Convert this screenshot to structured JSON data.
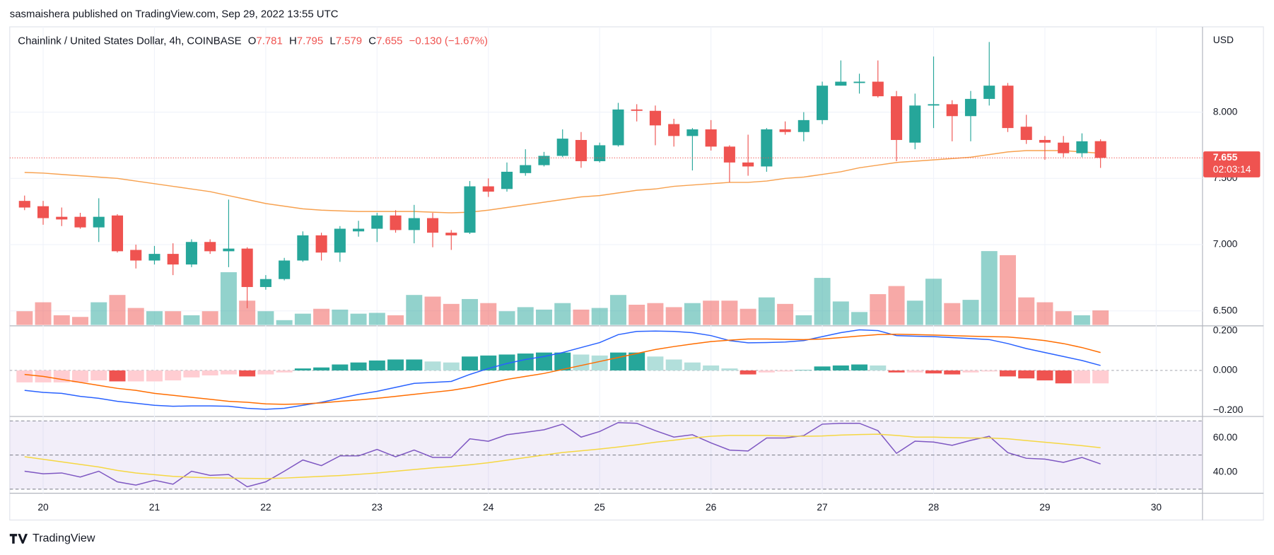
{
  "attribution": "sasmaishera published on TradingView.com, Sep 29, 2022 13:55 UTC",
  "brand": "TradingView",
  "chart_data": [
    {
      "type": "candlestick",
      "title": "Chainlink / United States Dollar, 4h, COINBASE",
      "legend": [
        {
          "key": "O",
          "value": 7.781
        },
        {
          "key": "H",
          "value": 7.795
        },
        {
          "key": "L",
          "value": 7.579
        },
        {
          "key": "C",
          "value": 7.655
        }
      ],
      "change": "−0.130 (−1.67%)",
      "currency": "USD",
      "last_price": 7.655,
      "countdown": "02:03:14",
      "up_color": "#26a69a",
      "down_color": "#ef5350",
      "xlim": [
        19.7,
        30.416
      ],
      "xticks": [
        20,
        21,
        22,
        23,
        24,
        25,
        26,
        27,
        28,
        29,
        30
      ],
      "ylim": [
        6.393,
        8.644
      ],
      "yticks": [
        {
          "value": 6.5,
          "label": "6.500"
        },
        {
          "value": 7,
          "label": "7.000"
        },
        {
          "value": 7.5,
          "label": "7.500"
        },
        {
          "value": 8,
          "label": "8.000"
        }
      ],
      "grid": true,
      "x": [
        19.8333,
        20,
        20.1667,
        20.3333,
        20.5,
        20.6667,
        20.8333,
        21,
        21.1667,
        21.3333,
        21.5,
        21.6667,
        21.8333,
        22,
        22.1667,
        22.3333,
        22.5,
        22.6667,
        22.8333,
        23,
        23.1667,
        23.3333,
        23.5,
        23.6667,
        23.8333,
        24,
        24.1667,
        24.3333,
        24.5,
        24.6667,
        24.8333,
        25,
        25.1667,
        25.3333,
        25.5,
        25.6667,
        25.8333,
        26,
        26.1667,
        26.3333,
        26.5,
        26.6667,
        26.8333,
        27,
        27.1667,
        27.3333,
        27.5,
        27.6667,
        27.8333,
        28,
        28.1667,
        28.3333,
        28.5,
        28.6667,
        28.8333,
        29,
        29.1667,
        29.3333,
        29.5
      ],
      "open": [
        7.33,
        7.29,
        7.21,
        7.21,
        7.13,
        7.22,
        6.96,
        6.88,
        6.93,
        6.85,
        7.02,
        6.95,
        6.97,
        6.68,
        6.74,
        6.88,
        7.07,
        6.94,
        7.1,
        7.12,
        7.22,
        7.11,
        7.2,
        7.09,
        7.09,
        7.44,
        7.42,
        7.54,
        7.6,
        7.67,
        7.79,
        7.63,
        7.75,
        8.02,
        8.01,
        7.91,
        7.82,
        7.87,
        7.74,
        7.62,
        7.59,
        7.87,
        7.85,
        7.94,
        8.2,
        8.22,
        8.23,
        8.12,
        7.77,
        8.05,
        8.06,
        7.97,
        8.1,
        8.2,
        7.89,
        7.79,
        7.77,
        7.69,
        7.781
      ],
      "high": [
        7.37,
        7.33,
        7.28,
        7.24,
        7.35,
        7.23,
        7.0,
        6.99,
        7.01,
        7.04,
        7.04,
        7.34,
        6.98,
        6.77,
        6.9,
        7.1,
        7.09,
        7.14,
        7.18,
        7.24,
        7.26,
        7.3,
        7.24,
        7.11,
        7.48,
        7.5,
        7.62,
        7.72,
        7.7,
        7.87,
        7.85,
        7.77,
        8.07,
        8.06,
        8.05,
        7.95,
        7.88,
        7.94,
        7.75,
        7.83,
        7.88,
        7.93,
        8.0,
        8.23,
        8.39,
        8.29,
        8.39,
        8.16,
        8.14,
        8.42,
        8.09,
        8.16,
        8.53,
        8.22,
        7.98,
        7.82,
        7.82,
        7.84,
        7.795
      ],
      "low": [
        7.26,
        7.15,
        7.14,
        7.12,
        7.02,
        6.94,
        6.82,
        6.85,
        6.77,
        6.83,
        6.93,
        6.83,
        6.52,
        6.66,
        6.73,
        6.87,
        6.88,
        6.87,
        7.06,
        7.02,
        7.09,
        7.01,
        6.98,
        6.96,
        7.08,
        7.36,
        7.4,
        7.52,
        7.59,
        7.66,
        7.58,
        7.62,
        7.74,
        7.93,
        7.75,
        7.74,
        7.56,
        7.71,
        7.47,
        7.52,
        7.55,
        7.83,
        7.78,
        7.91,
        8.2,
        8.14,
        8.11,
        7.63,
        7.72,
        7.88,
        7.78,
        7.78,
        8.05,
        7.85,
        7.76,
        7.64,
        7.66,
        7.66,
        7.579
      ],
      "close": [
        7.28,
        7.2,
        7.19,
        7.13,
        7.21,
        6.95,
        6.88,
        6.93,
        6.85,
        7.02,
        6.95,
        6.97,
        6.68,
        6.74,
        6.88,
        7.07,
        6.94,
        7.12,
        7.12,
        7.22,
        7.11,
        7.2,
        7.09,
        7.07,
        7.44,
        7.4,
        7.55,
        7.6,
        7.67,
        7.8,
        7.63,
        7.75,
        8.02,
        8.01,
        7.9,
        7.82,
        7.87,
        7.74,
        7.62,
        7.59,
        7.87,
        7.85,
        7.94,
        8.2,
        8.23,
        8.23,
        8.12,
        7.79,
        8.05,
        8.06,
        7.97,
        8.1,
        8.2,
        7.88,
        7.79,
        7.77,
        7.69,
        7.78,
        7.655
      ],
      "overlays": [
        {
          "color": "#f7a14f",
          "values": [
            7.545,
            7.54,
            7.53,
            7.52,
            7.51,
            7.5,
            7.48,
            7.46,
            7.44,
            7.42,
            7.4,
            7.37,
            7.34,
            7.31,
            7.29,
            7.27,
            7.26,
            7.255,
            7.25,
            7.25,
            7.25,
            7.25,
            7.245,
            7.24,
            7.245,
            7.26,
            7.28,
            7.3,
            7.32,
            7.34,
            7.36,
            7.37,
            7.39,
            7.41,
            7.42,
            7.44,
            7.45,
            7.46,
            7.47,
            7.47,
            7.48,
            7.5,
            7.51,
            7.53,
            7.55,
            7.58,
            7.6,
            7.62,
            7.63,
            7.64,
            7.65,
            7.66,
            7.68,
            7.7,
            7.71,
            7.71,
            7.71,
            7.7,
            7.69
          ]
        }
      ],
      "volume": [
        17,
        28,
        12,
        10,
        28,
        37,
        21,
        17,
        17,
        12,
        17,
        65,
        30,
        17,
        6,
        14,
        20,
        19,
        14,
        15,
        12,
        37,
        35,
        26,
        32,
        27,
        17,
        22,
        19,
        27,
        19,
        21,
        37,
        25,
        27,
        22,
        27,
        30,
        30,
        20,
        34,
        26,
        12,
        58,
        29,
        16,
        38,
        48,
        30,
        57,
        27,
        31,
        91,
        86,
        34,
        28,
        17,
        12,
        18
      ]
    },
    {
      "type": "macd",
      "ylim": [
        -0.229,
        0.22
      ],
      "yticks": [
        {
          "value": 0.2,
          "label": "0.200"
        },
        {
          "value": 0,
          "label": "0.000"
        },
        {
          "value": -0.2,
          "label": "−0.200"
        }
      ],
      "zero_line": true,
      "histogram": {
        "colors": {
          "grow_above": "#26a69a",
          "fall_above": "#b2dfdb",
          "grow_below": "#ffcdd2",
          "fall_below": "#ef5350"
        },
        "values": [
          -0.06,
          -0.06,
          -0.06,
          -0.06,
          -0.05,
          -0.055,
          -0.055,
          -0.055,
          -0.05,
          -0.035,
          -0.025,
          -0.02,
          -0.03,
          -0.02,
          -0.01,
          0.01,
          0.015,
          0.03,
          0.04,
          0.05,
          0.055,
          0.055,
          0.045,
          0.04,
          0.07,
          0.075,
          0.08,
          0.085,
          0.09,
          0.09,
          0.08,
          0.075,
          0.09,
          0.09,
          0.07,
          0.055,
          0.04,
          0.025,
          0.01,
          -0.02,
          -0.01,
          -0.005,
          0.002,
          0.02,
          0.025,
          0.03,
          0.025,
          -0.01,
          -0.01,
          -0.015,
          -0.02,
          -0.01,
          -0.005,
          -0.03,
          -0.04,
          -0.05,
          -0.065,
          -0.065,
          -0.065
        ]
      },
      "series": [
        {
          "color": "#2962ff",
          "values": [
            -0.1,
            -0.11,
            -0.115,
            -0.13,
            -0.14,
            -0.155,
            -0.165,
            -0.175,
            -0.18,
            -0.178,
            -0.178,
            -0.18,
            -0.19,
            -0.195,
            -0.19,
            -0.175,
            -0.16,
            -0.14,
            -0.12,
            -0.105,
            -0.085,
            -0.065,
            -0.06,
            -0.055,
            -0.02,
            0.01,
            0.035,
            0.055,
            0.07,
            0.09,
            0.115,
            0.14,
            0.18,
            0.196,
            0.198,
            0.196,
            0.19,
            0.175,
            0.15,
            0.139,
            0.14,
            0.143,
            0.15,
            0.17,
            0.19,
            0.204,
            0.2,
            0.175,
            0.172,
            0.17,
            0.165,
            0.16,
            0.155,
            0.135,
            0.11,
            0.09,
            0.07,
            0.05,
            0.025
          ]
        },
        {
          "color": "#ff6d00",
          "values": [
            -0.02,
            -0.03,
            -0.045,
            -0.06,
            -0.075,
            -0.09,
            -0.1,
            -0.115,
            -0.125,
            -0.135,
            -0.145,
            -0.155,
            -0.16,
            -0.168,
            -0.17,
            -0.168,
            -0.163,
            -0.155,
            -0.148,
            -0.14,
            -0.13,
            -0.12,
            -0.11,
            -0.1,
            -0.085,
            -0.065,
            -0.045,
            -0.03,
            -0.015,
            0.005,
            0.025,
            0.045,
            0.065,
            0.085,
            0.105,
            0.12,
            0.133,
            0.145,
            0.152,
            0.158,
            0.158,
            0.156,
            0.155,
            0.158,
            0.165,
            0.173,
            0.18,
            0.182,
            0.18,
            0.178,
            0.175,
            0.172,
            0.17,
            0.168,
            0.16,
            0.15,
            0.135,
            0.115,
            0.09
          ]
        }
      ]
    },
    {
      "type": "rsi",
      "ylim": [
        27.62,
        72.38
      ],
      "yticks": [
        {
          "value": 40,
          "label": "40.00"
        },
        {
          "value": 60,
          "label": "60.00"
        }
      ],
      "levels": [
        30,
        50,
        70
      ],
      "band_color": "#7e57c2",
      "series": [
        {
          "color": "#7e57c2",
          "values": [
            40.5,
            39,
            39.5,
            37.1,
            40.5,
            34.3,
            32.4,
            35.2,
            32.9,
            40.5,
            38.1,
            38.6,
            31.4,
            34.3,
            40.5,
            47.1,
            43.8,
            49.5,
            49.5,
            53.3,
            49,
            52.9,
            48.6,
            48.6,
            59.5,
            58.1,
            61.9,
            63.3,
            64.8,
            68.1,
            60.5,
            63.8,
            69,
            68.6,
            64.3,
            60.5,
            61.9,
            57.1,
            52.9,
            52.4,
            60,
            60,
            61.4,
            68.1,
            68.6,
            68.6,
            64.3,
            51,
            58.1,
            57.6,
            55.7,
            58.6,
            61,
            51.4,
            48.1,
            47.6,
            45.7,
            48.6,
            44.8
          ]
        },
        {
          "color": "#f5d742",
          "values": [
            49,
            47.5,
            46,
            44.5,
            43,
            41,
            39.5,
            38.5,
            37.5,
            37,
            36.7,
            36.5,
            36.3,
            36.2,
            36.5,
            37,
            37.5,
            38,
            38.7,
            39.5,
            40.5,
            41.5,
            42.5,
            43.3,
            44.3,
            45.5,
            47,
            48.5,
            50,
            51.5,
            52.5,
            53.5,
            54.7,
            56,
            57.5,
            58.7,
            60,
            61,
            61.5,
            61.5,
            61.5,
            61.2,
            61,
            61.2,
            61.7,
            62,
            62.2,
            61.5,
            60.5,
            60.5,
            60.2,
            60,
            60,
            59.5,
            58.5,
            57.5,
            56.5,
            55.5,
            54.3
          ]
        }
      ]
    }
  ]
}
